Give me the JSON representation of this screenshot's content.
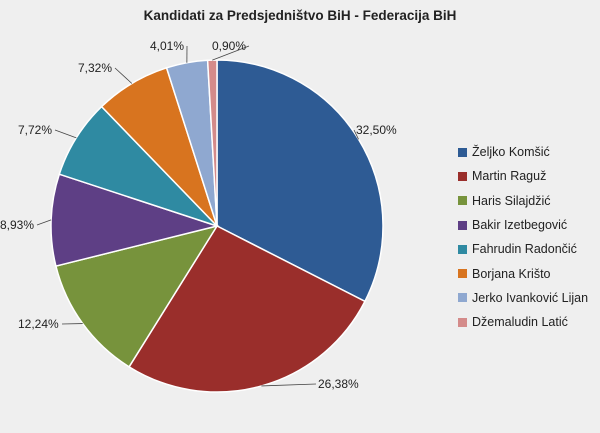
{
  "chart_data": {
    "type": "pie",
    "title": "Kandidati za Predsjedništvo BiH - Federacija BiH",
    "categories": [
      "Željko Komšić",
      "Martin Raguž",
      "Haris Silajdžić",
      "Bakir Izetbegović",
      "Fahrudin Radončić",
      "Borjana Krišto",
      "Jerko Ivanković Lijan",
      "Džemaludin Latić"
    ],
    "values": [
      32.5,
      26.38,
      12.24,
      8.93,
      7.72,
      7.32,
      4.01,
      0.9
    ],
    "labels": [
      "32,50%",
      "26,38%",
      "12,24%",
      "8,93%",
      "7,72%",
      "7,32%",
      "4,01%",
      "0,90%"
    ],
    "colors": [
      "#2e5b94",
      "#9a2e2b",
      "#77933c",
      "#5e3f85",
      "#2f8aa2",
      "#d8741f",
      "#8fa8d0",
      "#d48b8a"
    ],
    "legend_position": "right",
    "start": "top, clockwise"
  }
}
